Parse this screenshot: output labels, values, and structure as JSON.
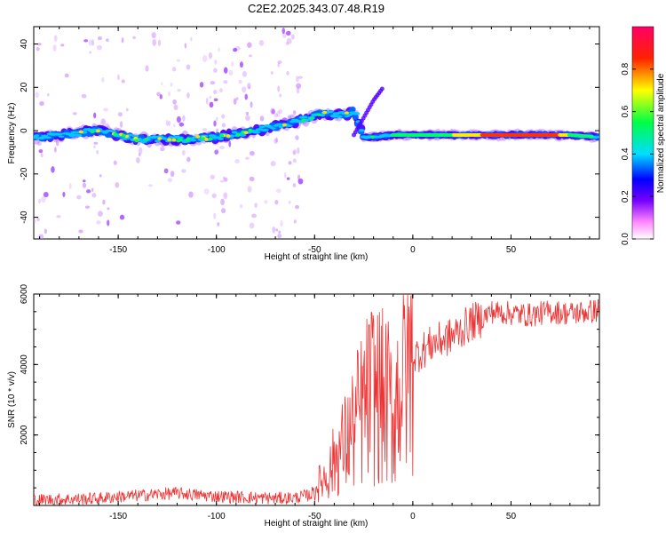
{
  "chart_data": [
    {
      "type": "heatmap",
      "title": "C2E2.2025.343.07.48.R19",
      "xlabel": "Height of straight line (km)",
      "ylabel": "Frequency (Hz)",
      "xlim": [
        -193,
        95
      ],
      "ylim": [
        -50,
        48
      ],
      "x_ticks": [
        -150,
        -100,
        -50,
        0,
        50
      ],
      "y_ticks": [
        -40,
        -20,
        0,
        20,
        40
      ],
      "colorbar": {
        "label": "Normalized spectral amplitude",
        "range": [
          0,
          1
        ],
        "ticks": [
          0.0,
          0.2,
          0.4,
          0.6,
          0.8
        ],
        "tick_labels": [
          "0.0",
          "0.2",
          "0.4",
          "0.6",
          "0.8"
        ],
        "colors": [
          "#ffffff",
          "#ff00ff",
          "#0000ff",
          "#00ffff",
          "#00ff00",
          "#ffff00",
          "#ff0000",
          "#ff0066"
        ]
      },
      "ridge": {
        "x": [
          -190,
          -160,
          -140,
          -120,
          -100,
          -80,
          -60,
          -45,
          -35,
          -30,
          -25,
          -20,
          -10,
          0,
          20,
          40,
          60,
          80,
          95
        ],
        "y": [
          -3,
          0,
          -4,
          -4,
          -3,
          0,
          4,
          8,
          7,
          9,
          -3,
          -3,
          -2,
          -2,
          -2,
          -2,
          -2,
          -2,
          -3
        ]
      },
      "branch": {
        "x": [
          -30,
          -25,
          -20,
          -15
        ],
        "y": [
          -2,
          6,
          14,
          20
        ]
      }
    },
    {
      "type": "line",
      "title": "",
      "xlabel": "Height of straight line (km)",
      "ylabel": "SNR (10 * v/v)",
      "xlim": [
        -193,
        95
      ],
      "ylim": [
        0,
        6000
      ],
      "x_ticks": [
        -150,
        -100,
        -50,
        0,
        50
      ],
      "y_ticks": [
        2000,
        4000,
        6000
      ],
      "series": [
        {
          "name": "SNR",
          "color": "#ee3333",
          "x": [
            -193,
            -175,
            -160,
            -150,
            -140,
            -130,
            -120,
            -110,
            -100,
            -90,
            -80,
            -70,
            -60,
            -52,
            -48,
            -45,
            -42,
            -40,
            -38,
            -35,
            -32,
            -30,
            -28,
            -25,
            -22,
            -20,
            -18,
            -15,
            -12,
            -10,
            -8,
            -5,
            -3,
            0,
            5,
            10,
            15,
            20,
            25,
            30,
            35,
            40,
            50,
            60,
            70,
            80,
            90,
            95
          ],
          "y": [
            150,
            180,
            200,
            250,
            280,
            320,
            350,
            300,
            260,
            240,
            220,
            200,
            220,
            300,
            600,
            800,
            1000,
            1300,
            1500,
            1700,
            2000,
            2200,
            2500,
            2800,
            3100,
            3300,
            3200,
            3000,
            2900,
            2500,
            3200,
            3700,
            4000,
            4200,
            4400,
            4600,
            4700,
            4800,
            5000,
            5200,
            5300,
            5500,
            5450,
            5400,
            5500,
            5450,
            5500,
            5550
          ]
        }
      ]
    }
  ]
}
